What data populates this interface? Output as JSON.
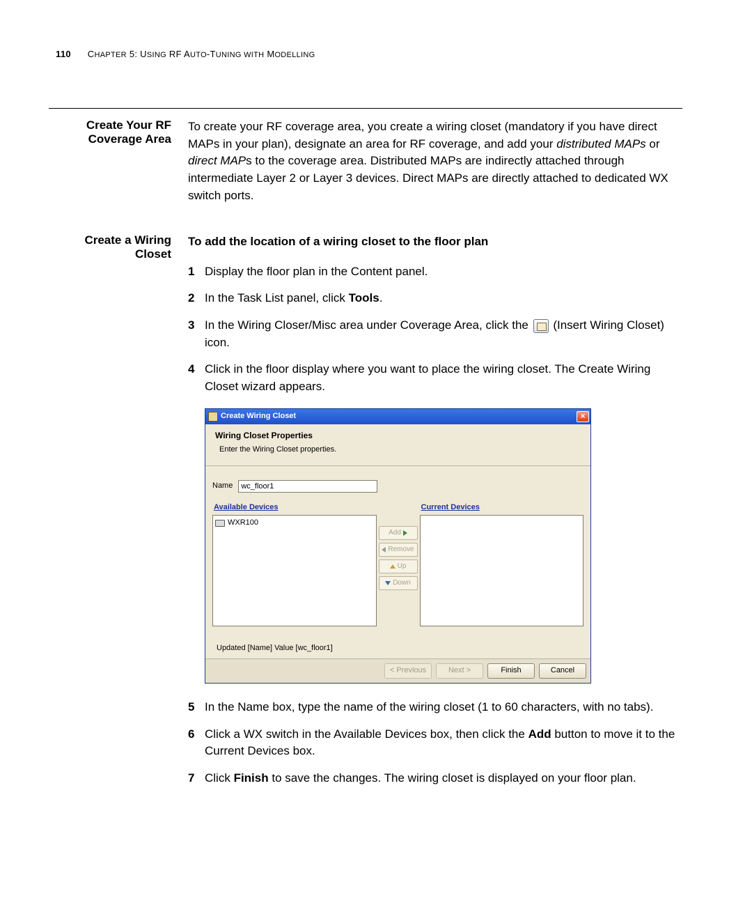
{
  "header": {
    "page_number": "110",
    "chapter_prefix": "C",
    "chapter_rest": "HAPTER",
    "chapter_num": " 5: U",
    "chapter_tail1": "SING",
    "chapter_tail2": " RF A",
    "chapter_tail3": "UTO",
    "chapter_tail4": "-T",
    "chapter_tail5": "UNING WITH",
    "chapter_tail6": " M",
    "chapter_tail7": "ODELLING"
  },
  "section1": {
    "side": "Create Your RF Coverage Area",
    "para1_a": "To create your RF coverage area, you create a wiring closet (mandatory if you have direct MAPs in your plan), designate an area for RF coverage, and add your ",
    "para1_i1": "distributed MAPs",
    "para1_b": " or ",
    "para1_i2": "direct MAP",
    "para1_c": "s to the coverage area. Distributed MAPs are indirectly attached through intermediate Layer 2 or Layer 3 devices. Direct MAPs are directly attached to dedicated WX switch ports."
  },
  "section2": {
    "side": "Create a Wiring Closet",
    "lead": "To add the location of a wiring closet to the floor plan",
    "steps": {
      "s1": "Display the floor plan in the Content panel.",
      "s2_a": "In the Task List panel, click ",
      "s2_b": "Tools",
      "s2_c": ".",
      "s3_a": "In the Wiring Closer/Misc area under Coverage Area, click the ",
      "s3_b": " (Insert Wiring Closet) icon.",
      "s4": "Click in the floor display where you want to place the wiring closet. The Create Wiring Closet wizard appears.",
      "s5": "In the Name box, type the name of the wiring closet (1 to 60 characters, with no tabs).",
      "s6_a": "Click a WX switch in the Available Devices box, then click the ",
      "s6_b": "Add",
      "s6_c": " button to move it to the Current Devices box.",
      "s7_a": "Click ",
      "s7_b": "Finish",
      "s7_c": " to save the changes. The wiring closet is displayed on your floor plan."
    }
  },
  "wizard": {
    "title": "Create Wiring Closet",
    "heading": "Wiring Closet Properties",
    "subheading": "Enter the Wiring Closet properties.",
    "name_label": "Name",
    "name_value": "wc_floor1",
    "available_title": "Available Devices",
    "current_title": "Current Devices",
    "device0": "WXR100",
    "btn_add": "Add",
    "btn_remove": "Remove",
    "btn_up": "Up",
    "btn_down": "Down",
    "status": "Updated [Name] Value [wc_floor1]",
    "btn_prev": "< Previous",
    "btn_next": "Next >",
    "btn_finish": "Finish",
    "btn_cancel": "Cancel",
    "close_glyph": "×"
  }
}
